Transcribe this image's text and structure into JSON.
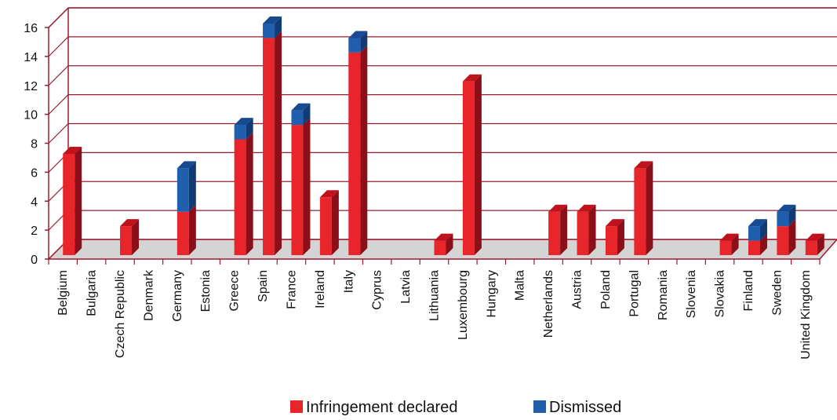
{
  "chart_data": {
    "type": "bar3d_stacked",
    "categories": [
      "Belgium",
      "Bulgaria",
      "Czech Republic",
      "Denmark",
      "Germany",
      "Estonia",
      "Greece",
      "Spain",
      "France",
      "Ireland",
      "Italy",
      "Cyprus",
      "Latvia",
      "Lithuania",
      "Luxembourg",
      "Hungary",
      "Malta",
      "Netherlands",
      "Austria",
      "Poland",
      "Portugal",
      "Romania",
      "Slovenia",
      "Slovakia",
      "Finland",
      "Sweden",
      "United Kingdom"
    ],
    "series": [
      {
        "name": "Infringement declared",
        "color": "#e8252b",
        "values": [
          7,
          0,
          2,
          0,
          3,
          0,
          8,
          15,
          9,
          4,
          14,
          0,
          0,
          1,
          12,
          0,
          0,
          3,
          3,
          2,
          6,
          0,
          0,
          1,
          1,
          2,
          1
        ]
      },
      {
        "name": "Dismissed",
        "color": "#1f5fae",
        "values": [
          0,
          0,
          0,
          0,
          3,
          0,
          1,
          1,
          1,
          0,
          1,
          0,
          0,
          0,
          0,
          0,
          0,
          0,
          0,
          0,
          0,
          0,
          0,
          0,
          1,
          1,
          0
        ]
      }
    ],
    "ylim": [
      0,
      16
    ],
    "yticks": [
      0,
      2,
      4,
      6,
      8,
      10,
      12,
      14,
      16
    ],
    "grid": true,
    "legend": "bottom"
  }
}
